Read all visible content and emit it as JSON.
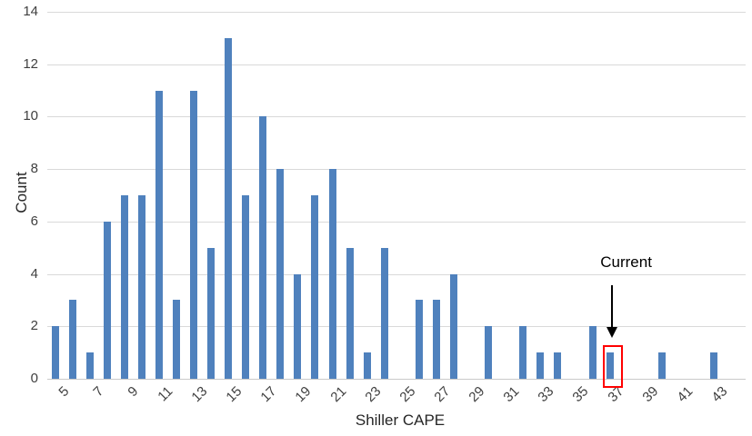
{
  "chart_data": {
    "type": "bar",
    "subtype": "histogram",
    "title": "",
    "xlabel": "Shiller CAPE",
    "ylabel": "Count",
    "x": [
      5,
      6,
      7,
      8,
      9,
      10,
      11,
      12,
      13,
      14,
      15,
      16,
      17,
      18,
      19,
      20,
      21,
      22,
      23,
      24,
      25,
      26,
      27,
      28,
      29,
      30,
      31,
      32,
      33,
      34,
      35,
      36,
      37,
      38,
      39,
      40,
      41,
      42,
      43
    ],
    "values": [
      2,
      3,
      1,
      6,
      7,
      7,
      11,
      3,
      11,
      5,
      13,
      7,
      10,
      8,
      4,
      7,
      8,
      5,
      1,
      5,
      0,
      3,
      3,
      4,
      0,
      2,
      0,
      2,
      1,
      1,
      0,
      2,
      1,
      0,
      0,
      1,
      0,
      0,
      1
    ],
    "xtick_labels": [
      "5",
      "7",
      "9",
      "11",
      "13",
      "15",
      "17",
      "19",
      "21",
      "23",
      "25",
      "27",
      "29",
      "31",
      "33",
      "35",
      "37",
      "39",
      "41",
      "43"
    ],
    "ytick_labels": [
      "0",
      "2",
      "4",
      "6",
      "8",
      "10",
      "12",
      "14"
    ],
    "ylim": [
      0,
      14
    ],
    "ytick_interval": 2,
    "grid": "horizontal",
    "legend": "none",
    "colors": {
      "bar": "#4F81BD",
      "gridline": "#D9D9D9",
      "axis_line": "#C9C9C9",
      "tick_label": "#404040",
      "axis_title": "#262626",
      "annotation_text": "#000000",
      "annotation_arrow": "#000000",
      "highlight_box": "#FF0000"
    },
    "annotation": {
      "label": "Current",
      "target_x": 37,
      "target_value": 1,
      "arrow_direction": "down",
      "highlight": "red-box-around-bar"
    }
  }
}
